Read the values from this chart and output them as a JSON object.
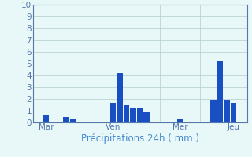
{
  "bars": [
    {
      "x": 2,
      "height": 0.7
    },
    {
      "x": 5,
      "height": 0.5
    },
    {
      "x": 6,
      "height": 0.35
    },
    {
      "x": 12,
      "height": 1.65
    },
    {
      "x": 13,
      "height": 4.2
    },
    {
      "x": 14,
      "height": 1.5
    },
    {
      "x": 15,
      "height": 1.2
    },
    {
      "x": 16,
      "height": 1.3
    },
    {
      "x": 17,
      "height": 0.9
    },
    {
      "x": 22,
      "height": 0.35
    },
    {
      "x": 27,
      "height": 1.85
    },
    {
      "x": 28,
      "height": 5.2
    },
    {
      "x": 29,
      "height": 1.9
    },
    {
      "x": 30,
      "height": 1.65
    }
  ],
  "bar_color": "#1a4fc4",
  "bar_width": 0.85,
  "day_labels": [
    {
      "label": "Mar",
      "x": 2
    },
    {
      "label": "Ven",
      "x": 12
    },
    {
      "label": "Mer",
      "x": 22
    },
    {
      "label": "Jeu",
      "x": 30
    }
  ],
  "vgrid_positions": [
    0,
    8,
    19,
    25,
    32
  ],
  "xlabel": "Précipitations 24h ( mm )",
  "ylim": [
    0,
    10
  ],
  "yticks": [
    0,
    1,
    2,
    3,
    4,
    5,
    6,
    7,
    8,
    9,
    10
  ],
  "xlim": [
    0,
    32
  ],
  "background_color": "#e8f8f8",
  "grid_color": "#b0cccc",
  "axis_color": "#5577aa",
  "xlabel_color": "#4488cc",
  "xlabel_fontsize": 8.5,
  "ytick_fontsize": 7.5,
  "xtick_fontsize": 7.5
}
